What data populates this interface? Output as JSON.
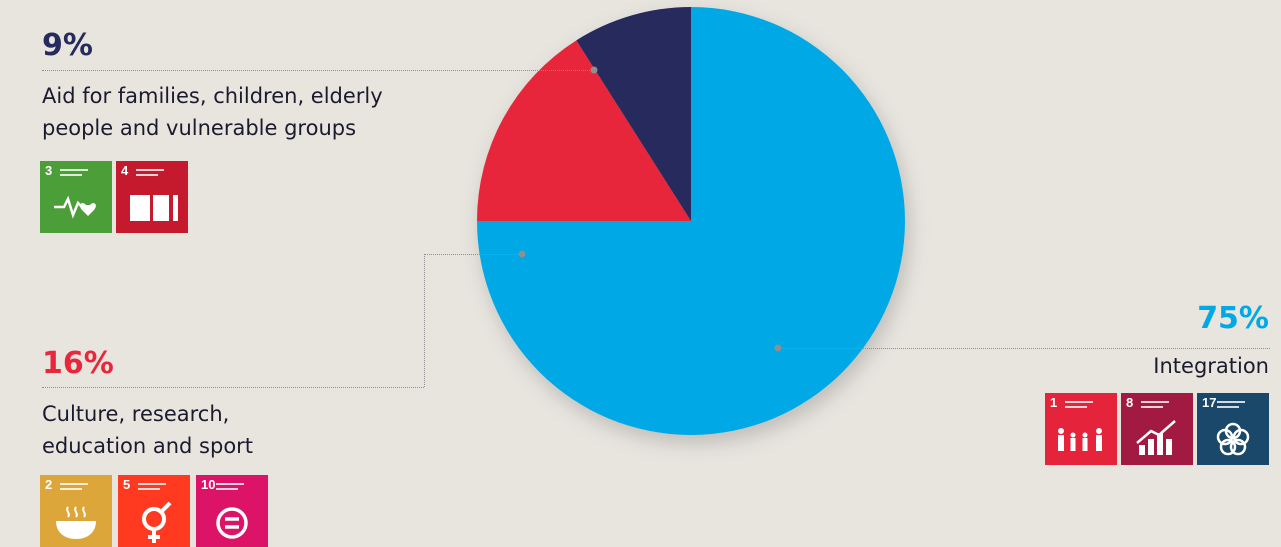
{
  "chart_data": {
    "type": "pie",
    "slices": [
      {
        "label": "Integration",
        "value": 75,
        "display": "75%",
        "color": "#00a9e6"
      },
      {
        "label": "Culture, research, education and sport",
        "value": 16,
        "display": "16%",
        "color": "#e8283a"
      },
      {
        "label": "Aid for families, children, elderly people and vulnerable groups",
        "value": 9,
        "display": "9%",
        "color": "#272a5c"
      }
    ]
  },
  "annotations": {
    "aid": {
      "percent": "9%",
      "line1": "Aid for families, children, elderly",
      "line2": "people and vulnerable groups",
      "color": "#272a5c"
    },
    "culture": {
      "percent": "16%",
      "line1": "Culture, research,",
      "line2": "education and sport",
      "color": "#e8283a"
    },
    "integration": {
      "percent": "75%",
      "line1": "Integration",
      "color": "#00a9e6"
    }
  },
  "sdg_icons": {
    "aid": [
      {
        "num": "3",
        "icon": "heartbeat-icon",
        "color": "#4c9f38"
      },
      {
        "num": "4",
        "icon": "book-icon",
        "color": "#c5192d"
      }
    ],
    "culture": [
      {
        "num": "2",
        "icon": "bowl-icon",
        "color": "#dda63a"
      },
      {
        "num": "5",
        "icon": "gender-icon",
        "color": "#ff3a21"
      },
      {
        "num": "10",
        "icon": "equal-icon",
        "color": "#dd1367"
      }
    ],
    "integration": [
      {
        "num": "1",
        "icon": "family-icon",
        "color": "#e5243b"
      },
      {
        "num": "8",
        "icon": "growth-chart-icon",
        "color": "#a21942"
      },
      {
        "num": "17",
        "icon": "flower-icon",
        "color": "#19486a"
      }
    ]
  }
}
